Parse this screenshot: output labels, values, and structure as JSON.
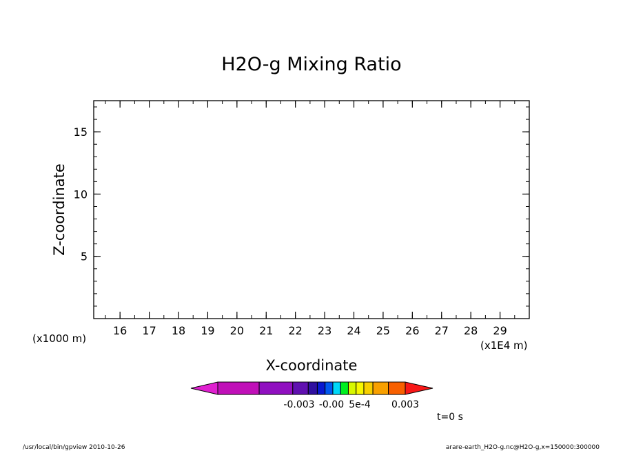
{
  "chart_data": {
    "type": "heatmap",
    "title": "H2O-g Mixing Ratio",
    "xlabel": "X-coordinate",
    "ylabel": "Z-coordinate",
    "x_multiplier": "(x1E4 m)",
    "y_multiplier": "(x1000 m)",
    "xlim": [
      15.1,
      30
    ],
    "ylim": [
      0,
      17.5
    ],
    "x_ticks": [
      16,
      17,
      18,
      19,
      20,
      21,
      22,
      23,
      24,
      25,
      26,
      27,
      28,
      29
    ],
    "y_ticks": [
      5,
      10,
      15
    ],
    "x_minor_step": 0.5,
    "y_minor_step": 1,
    "values": [],
    "colorbar": {
      "colors": [
        "#e020d0",
        "#c010b8",
        "#9010c0",
        "#6010b0",
        "#3010a0",
        "#0818d0",
        "#0058f0",
        "#00d8f8",
        "#00f020",
        "#d8f800",
        "#f8f800",
        "#f8d000",
        "#f8a000",
        "#f86000",
        "#f81818"
      ],
      "labels": [
        "-0.003",
        "-0.00",
        "5e-4",
        "0.003"
      ]
    },
    "time_label": "t=0 s"
  },
  "footer": {
    "left": "/usr/local/bin/gpview  2010-10-26",
    "right": "arare-earth_H2O-g.nc@H2O-g,x=150000:300000"
  }
}
